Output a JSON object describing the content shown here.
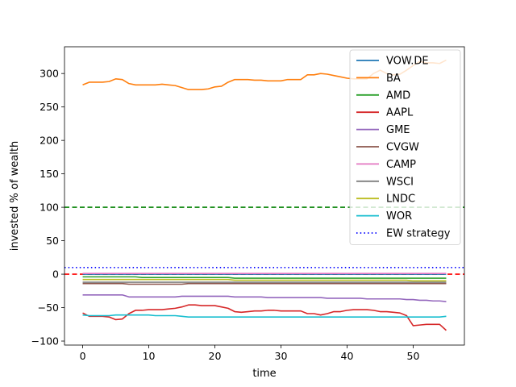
{
  "chart_data": {
    "type": "line",
    "xlabel": "time",
    "ylabel": "invested % of wealth",
    "xlim": [
      -2.75,
      57.75
    ],
    "ylim": [
      -106,
      340
    ],
    "xticks": [
      0,
      10,
      20,
      30,
      40,
      50
    ],
    "yticks": [
      -100,
      -50,
      0,
      50,
      100,
      150,
      200,
      250,
      300
    ],
    "legend_position": "top-right",
    "grid": false,
    "series": [
      {
        "name": "VOW.DE",
        "color": "#1f77b4",
        "values": [
          0,
          0,
          0,
          0,
          0,
          0,
          0,
          0,
          0,
          0,
          0,
          0,
          0,
          0,
          0,
          0,
          0,
          0,
          0,
          0,
          0,
          0,
          0,
          0,
          0,
          0,
          0,
          0,
          0,
          0,
          0,
          0,
          0,
          0,
          0,
          0,
          0,
          0,
          0,
          0,
          0,
          0,
          0,
          0,
          0,
          0,
          0,
          0,
          0,
          0,
          0,
          0,
          0,
          0,
          0,
          0
        ]
      },
      {
        "name": "BA",
        "color": "#ff7f0e",
        "values": [
          283,
          287,
          287,
          287,
          288,
          292,
          291,
          285,
          283,
          283,
          283,
          283,
          284,
          283,
          282,
          279,
          276,
          276,
          276,
          277,
          280,
          281,
          287,
          291,
          291,
          291,
          290,
          290,
          289,
          289,
          289,
          291,
          291,
          291,
          298,
          298,
          300,
          299,
          297,
          295,
          293,
          292,
          292,
          292,
          300,
          305,
          300,
          298,
          299,
          305,
          312,
          318,
          316,
          316,
          315,
          320
        ]
      },
      {
        "name": "AMD",
        "color": "#2ca02c",
        "values": [
          -4,
          -4,
          -4,
          -4,
          -4,
          -4,
          -4,
          -4,
          -4,
          -5,
          -5,
          -5,
          -5,
          -5,
          -5,
          -5,
          -5,
          -5,
          -5,
          -5,
          -5,
          -5,
          -5,
          -6,
          -6,
          -6,
          -6,
          -6,
          -6,
          -6,
          -6,
          -6,
          -6,
          -6,
          -6,
          -6,
          -6,
          -6,
          -6,
          -6,
          -6,
          -6,
          -6,
          -6,
          -6,
          -6,
          -6,
          -6,
          -6,
          -6,
          -6,
          -6,
          -6,
          -6,
          -6,
          -6
        ]
      },
      {
        "name": "AAPL",
        "color": "#d62728",
        "values": [
          -58,
          -63,
          -63,
          -63,
          -64,
          -68,
          -67,
          -59,
          -54,
          -54,
          -53,
          -53,
          -53,
          -52,
          -51,
          -49,
          -46,
          -46,
          -47,
          -47,
          -47,
          -49,
          -51,
          -56,
          -57,
          -56,
          -55,
          -55,
          -54,
          -54,
          -55,
          -55,
          -55,
          -55,
          -59,
          -59,
          -61,
          -59,
          -56,
          -56,
          -54,
          -53,
          -53,
          -53,
          -54,
          -56,
          -56,
          -57,
          -58,
          -62,
          -77,
          -76,
          -75,
          -75,
          -75,
          -84
        ]
      },
      {
        "name": "GME",
        "color": "#9467bd",
        "values": [
          -31,
          -31,
          -31,
          -31,
          -31,
          -31,
          -31,
          -34,
          -34,
          -34,
          -34,
          -34,
          -34,
          -34,
          -34,
          -33,
          -33,
          -33,
          -33,
          -33,
          -33,
          -33,
          -33,
          -34,
          -34,
          -34,
          -34,
          -34,
          -35,
          -35,
          -35,
          -35,
          -35,
          -35,
          -35,
          -35,
          -35,
          -36,
          -36,
          -36,
          -36,
          -36,
          -36,
          -37,
          -37,
          -37,
          -37,
          -37,
          -37,
          -38,
          -38,
          -39,
          -39,
          -40,
          -40,
          -41
        ]
      },
      {
        "name": "CVGW",
        "color": "#8c564b",
        "values": [
          -14,
          -14,
          -14,
          -14,
          -14,
          -14,
          -14,
          -15,
          -15,
          -15,
          -15,
          -15,
          -15,
          -15,
          -15,
          -15,
          -14,
          -14,
          -14,
          -14,
          -14,
          -14,
          -14,
          -14,
          -14,
          -14,
          -14,
          -14,
          -14,
          -14,
          -14,
          -14,
          -14,
          -14,
          -14,
          -14,
          -14,
          -14,
          -14,
          -14,
          -14,
          -14,
          -14,
          -14,
          -14,
          -14,
          -14,
          -14,
          -14,
          -14,
          -14,
          -14,
          -14,
          -14,
          -14,
          -14
        ]
      },
      {
        "name": "CAMP",
        "color": "#e377c2",
        "values": [
          1,
          1,
          1,
          1,
          1,
          1,
          1,
          1,
          1,
          1,
          1,
          1,
          1,
          1,
          1,
          1,
          1,
          1,
          1,
          1,
          1,
          1,
          1,
          1,
          1,
          1,
          1,
          1,
          1,
          1,
          1,
          1,
          1,
          1,
          1,
          1,
          1,
          1,
          1,
          1,
          1,
          1,
          1,
          1,
          1,
          1,
          1,
          1,
          1,
          1,
          1,
          1,
          1,
          1,
          1,
          1
        ]
      },
      {
        "name": "WSCI",
        "color": "#7f7f7f",
        "values": [
          -12,
          -12,
          -12,
          -12,
          -12,
          -12,
          -12,
          -12,
          -12,
          -12,
          -12,
          -12,
          -12,
          -12,
          -12,
          -12,
          -12,
          -12,
          -12,
          -12,
          -12,
          -12,
          -12,
          -12,
          -12,
          -12,
          -12,
          -12,
          -12,
          -12,
          -12,
          -12,
          -12,
          -12,
          -12,
          -12,
          -12,
          -12,
          -12,
          -12,
          -12,
          -12,
          -12,
          -12,
          -12,
          -12,
          -12,
          -12,
          -12,
          -12,
          -12,
          -12,
          -12,
          -12,
          -12,
          -12
        ]
      },
      {
        "name": "LNDC",
        "color": "#bcbd22",
        "values": [
          -8,
          -8,
          -8,
          -8,
          -8,
          -8,
          -8,
          -8,
          -8,
          -8,
          -8,
          -8,
          -8,
          -8,
          -8,
          -8,
          -8,
          -8,
          -8,
          -8,
          -8,
          -8,
          -8,
          -9,
          -9,
          -9,
          -9,
          -9,
          -9,
          -9,
          -9,
          -9,
          -9,
          -9,
          -9,
          -9,
          -9,
          -9,
          -9,
          -9,
          -9,
          -9,
          -9,
          -9,
          -9,
          -9,
          -9,
          -9,
          -9,
          -9,
          -10,
          -10,
          -10,
          -10,
          -10,
          -10
        ]
      },
      {
        "name": "WOR",
        "color": "#17becf",
        "values": [
          -61,
          -62,
          -62,
          -62,
          -62,
          -61,
          -61,
          -61,
          -61,
          -61,
          -61,
          -62,
          -62,
          -62,
          -62,
          -63,
          -64,
          -64,
          -64,
          -64,
          -64,
          -64,
          -64,
          -64,
          -64,
          -64,
          -64,
          -64,
          -64,
          -64,
          -64,
          -64,
          -64,
          -64,
          -64,
          -64,
          -64,
          -64,
          -64,
          -64,
          -64,
          -64,
          -64,
          -64,
          -64,
          -64,
          -64,
          -64,
          -64,
          -64,
          -64,
          -64,
          -64,
          -64,
          -64,
          -63
        ]
      }
    ],
    "reference_lines": [
      {
        "name": "EW strategy",
        "y": 10,
        "color": "#0000ff",
        "style": "dotted",
        "in_legend": true
      },
      {
        "y": 100,
        "color": "#008000",
        "style": "dashed",
        "in_legend": false
      },
      {
        "y": 0,
        "color": "#ff0000",
        "style": "dashed",
        "in_legend": false
      }
    ]
  }
}
